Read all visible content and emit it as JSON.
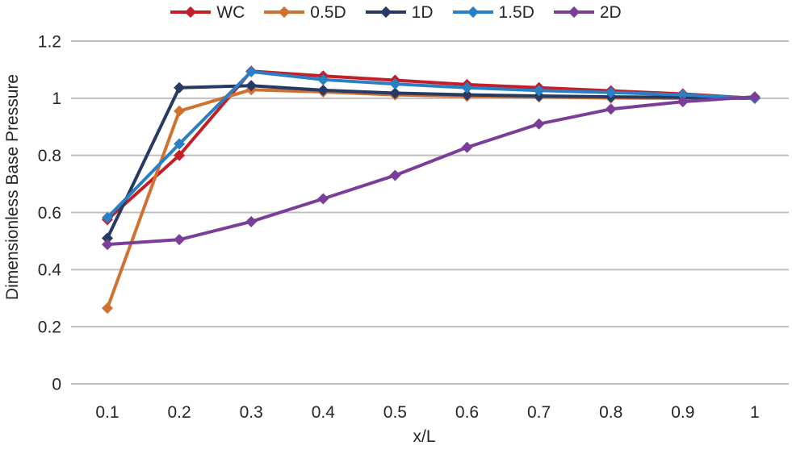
{
  "chart_data": {
    "type": "line",
    "title": "",
    "xlabel": "x/L",
    "ylabel": "Dimensionless Base Pressure",
    "x": [
      0.1,
      0.2,
      0.3,
      0.4,
      0.5,
      0.6,
      0.7,
      0.8,
      0.9,
      1.0
    ],
    "x_tick_labels": [
      "0.1",
      "0.2",
      "0.3",
      "0.4",
      "0.5",
      "0.6",
      "0.7",
      "0.8",
      "0.9",
      "1"
    ],
    "y_ticks": [
      0,
      0.2,
      0.4,
      0.6,
      0.8,
      1.0,
      1.2
    ],
    "y_tick_labels": [
      "0",
      "0.2",
      "0.4",
      "0.6",
      "0.8",
      "1",
      "1.2"
    ],
    "xlim": [
      0.1,
      1.0
    ],
    "ylim": [
      0,
      1.2
    ],
    "grid": "horizontal-only",
    "legend_position": "top-center",
    "marker": "diamond",
    "series": [
      {
        "name": "WC",
        "color": "#C41F28",
        "values": [
          0.575,
          0.8,
          1.095,
          1.078,
          1.063,
          1.048,
          1.037,
          1.026,
          1.015,
          1.0
        ]
      },
      {
        "name": "0.5D",
        "color": "#D1712F",
        "values": [
          0.265,
          0.955,
          1.03,
          1.022,
          1.012,
          1.007,
          1.004,
          1.001,
          1.0,
          1.0
        ]
      },
      {
        "name": "1D",
        "color": "#263A64",
        "values": [
          0.51,
          1.037,
          1.044,
          1.028,
          1.018,
          1.012,
          1.008,
          1.005,
          1.003,
          1.0
        ]
      },
      {
        "name": "1.5D",
        "color": "#2980C4",
        "values": [
          0.582,
          0.84,
          1.093,
          1.065,
          1.05,
          1.037,
          1.027,
          1.02,
          1.012,
          1.0
        ]
      },
      {
        "name": "2D",
        "color": "#7A3E98",
        "values": [
          0.488,
          0.505,
          0.568,
          0.648,
          0.73,
          0.828,
          0.91,
          0.962,
          0.988,
          1.005
        ]
      }
    ]
  },
  "style": {
    "text_color": "#262626",
    "gridline_color": "#BFBFBF",
    "background": "#FFFFFF"
  }
}
